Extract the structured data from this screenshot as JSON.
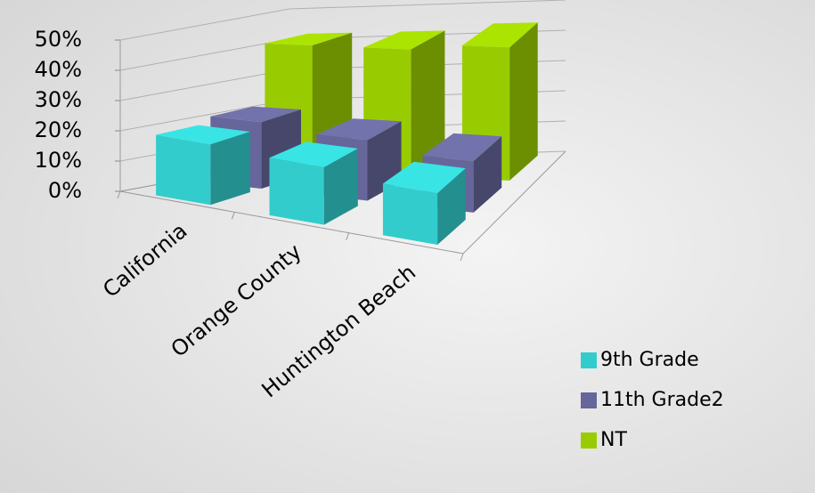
{
  "chart_data": {
    "type": "bar",
    "categories": [
      "California",
      "Orange County",
      "Huntington Beach"
    ],
    "series": [
      {
        "name": "9th Grade",
        "color": "#33cccc",
        "values": [
          20,
          19,
          17
        ]
      },
      {
        "name": "11th Grade2",
        "color": "#66669a",
        "values": [
          22,
          20,
          17
        ]
      },
      {
        "name": "NT",
        "color": "#99cc00",
        "values": [
          42,
          42,
          44
        ]
      }
    ],
    "ylim": [
      0,
      50
    ],
    "yticks": [
      {
        "value": 0,
        "label": "0%"
      },
      {
        "value": 10,
        "label": "10%"
      },
      {
        "value": 20,
        "label": "20%"
      },
      {
        "value": 30,
        "label": "30%"
      },
      {
        "value": 40,
        "label": "40%"
      },
      {
        "value": 50,
        "label": "50%"
      }
    ],
    "grid": true,
    "legend": "right"
  }
}
